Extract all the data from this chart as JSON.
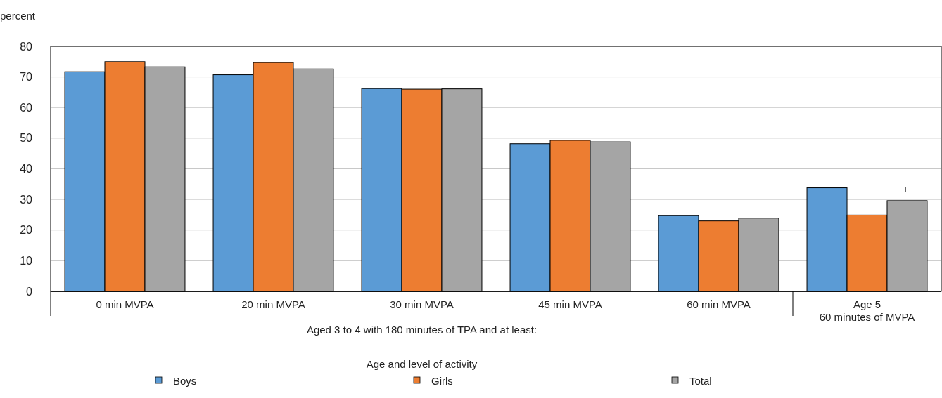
{
  "chart_data": {
    "type": "bar",
    "ylabel": "percent",
    "xlabel": "Age and level of activity",
    "categories": [
      "0 min MVPA",
      "20 min MVPA",
      "30 min MVPA",
      "45 min MVPA",
      "60 min MVPA",
      "Age 5\n60 minutes of MVPA"
    ],
    "series": [
      {
        "name": "Boys",
        "color": "#5b9bd5",
        "values": [
          71.7,
          70.7,
          66.2,
          48.2,
          24.7,
          33.8
        ]
      },
      {
        "name": "Girls",
        "color": "#ed7d31",
        "values": [
          75.0,
          74.7,
          66.0,
          49.3,
          23.0,
          24.9
        ]
      },
      {
        "name": "Total",
        "color": "#a5a5a5",
        "values": [
          73.3,
          72.6,
          66.1,
          48.8,
          23.9,
          29.6
        ]
      }
    ],
    "ylim": [
      0,
      80
    ],
    "yticks": [
      0,
      10,
      20,
      30,
      40,
      50,
      60,
      70,
      80
    ],
    "grid": "y",
    "legend": "bottom",
    "annotations": [
      "E",
      "Aged 3 to 4 with 180 minutes of TPA and at least:"
    ]
  }
}
